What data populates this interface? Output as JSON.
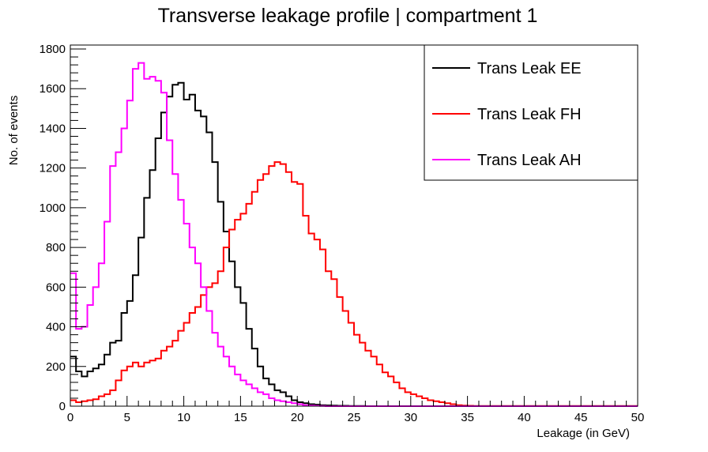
{
  "chart_data": {
    "type": "line",
    "title": "Transverse leakage profile | compartment 1",
    "xlabel": "Leakage (in GeV)",
    "ylabel": "No. of events",
    "xlim": [
      0,
      50
    ],
    "ylim": [
      0,
      1820
    ],
    "x_ticks": [
      0,
      5,
      10,
      15,
      20,
      25,
      30,
      35,
      40,
      45,
      50
    ],
    "y_ticks": [
      0,
      200,
      400,
      600,
      800,
      1000,
      1200,
      1400,
      1600,
      1800
    ],
    "bin_width": 0.5,
    "grid": false,
    "legend_position": "top-right",
    "series": [
      {
        "name": "Trans Leak EE",
        "color": "#000000",
        "values": [
          250,
          175,
          150,
          175,
          190,
          210,
          260,
          320,
          330,
          470,
          530,
          660,
          850,
          1050,
          1190,
          1350,
          1480,
          1560,
          1620,
          1630,
          1545,
          1570,
          1490,
          1460,
          1380,
          1230,
          1030,
          880,
          730,
          600,
          520,
          390,
          290,
          200,
          140,
          110,
          80,
          70,
          50,
          30,
          20,
          15,
          10,
          8,
          5,
          4,
          3,
          2,
          2,
          1,
          1,
          1,
          0,
          0,
          0,
          0,
          0,
          0,
          0,
          0,
          0,
          0,
          0,
          0,
          0,
          0,
          0,
          0,
          0,
          0,
          0,
          0,
          0,
          0,
          0,
          0,
          0,
          0,
          0,
          0,
          0,
          0,
          0,
          0,
          0,
          0,
          0,
          0,
          0,
          0,
          0,
          0,
          0,
          0,
          0,
          0,
          0,
          0,
          0,
          0
        ]
      },
      {
        "name": "Trans Leak FH",
        "color": "#ff0000",
        "values": [
          30,
          20,
          25,
          30,
          35,
          50,
          60,
          80,
          130,
          180,
          200,
          220,
          200,
          220,
          230,
          240,
          280,
          300,
          330,
          380,
          420,
          470,
          500,
          560,
          600,
          620,
          680,
          800,
          890,
          940,
          970,
          1020,
          1080,
          1140,
          1170,
          1210,
          1230,
          1220,
          1180,
          1130,
          1120,
          960,
          870,
          840,
          790,
          680,
          640,
          550,
          480,
          420,
          360,
          320,
          280,
          250,
          210,
          170,
          150,
          120,
          90,
          70,
          60,
          50,
          40,
          30,
          25,
          20,
          15,
          10,
          5,
          3,
          2,
          1,
          1,
          1,
          1,
          1,
          1,
          1,
          1,
          1,
          1,
          1,
          1,
          1,
          1,
          1,
          1,
          1,
          1,
          1,
          1,
          1,
          1,
          1,
          1,
          1,
          1,
          1,
          1,
          1
        ]
      },
      {
        "name": "Trans Leak AH",
        "color": "#ff00ff",
        "values": [
          670,
          390,
          400,
          510,
          600,
          720,
          930,
          1210,
          1280,
          1400,
          1540,
          1700,
          1730,
          1650,
          1660,
          1640,
          1580,
          1340,
          1170,
          1040,
          920,
          800,
          720,
          600,
          480,
          370,
          300,
          250,
          200,
          160,
          130,
          110,
          90,
          70,
          60,
          40,
          30,
          25,
          20,
          15,
          10,
          5,
          3,
          2,
          1,
          0,
          0,
          0,
          0,
          0,
          0,
          0,
          0,
          0,
          0,
          0,
          0,
          0,
          0,
          0,
          0,
          0,
          0,
          0,
          0,
          0,
          0,
          0,
          0,
          0,
          0,
          0,
          0,
          0,
          0,
          0,
          0,
          0,
          0,
          0,
          0,
          0,
          0,
          0,
          0,
          0,
          0,
          0,
          0,
          0,
          0,
          0,
          0,
          0,
          0,
          0,
          0,
          0,
          0,
          0
        ]
      }
    ]
  }
}
